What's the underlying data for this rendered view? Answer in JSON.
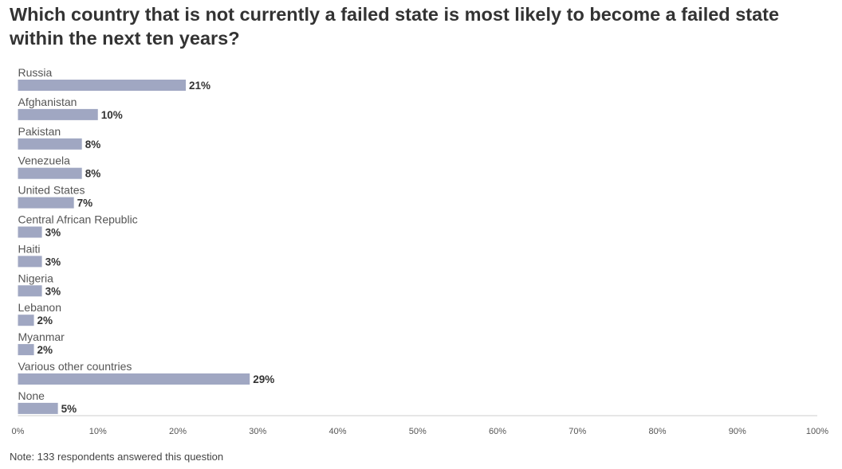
{
  "chart_data": {
    "type": "bar",
    "orientation": "horizontal",
    "title": "Which country that is not currently a failed state is most likely to become a failed state within the next ten years?",
    "categories": [
      "Russia",
      "Afghanistan",
      "Pakistan",
      "Venezuela",
      "United States",
      "Central African Republic",
      "Haiti",
      "Nigeria",
      "Lebanon",
      "Myanmar",
      "Various other countries",
      "None"
    ],
    "values": [
      21,
      10,
      8,
      8,
      7,
      3,
      3,
      3,
      2,
      2,
      29,
      5
    ],
    "value_labels": [
      "21%",
      "10%",
      "8%",
      "8%",
      "7%",
      "3%",
      "3%",
      "3%",
      "2%",
      "2%",
      "29%",
      "5%"
    ],
    "xlim": [
      0,
      100
    ],
    "x_ticks": [
      0,
      10,
      20,
      30,
      40,
      50,
      60,
      70,
      80,
      90,
      100
    ],
    "x_tick_labels": [
      "0%",
      "10%",
      "20%",
      "30%",
      "40%",
      "50%",
      "60%",
      "70%",
      "80%",
      "90%",
      "100%"
    ],
    "xlabel": "",
    "ylabel": "",
    "grid": false,
    "legend": "none",
    "bar_color": "#a0a7c2",
    "axis_color": "#cccccc"
  },
  "note": "Note: 133 respondents answered this question"
}
